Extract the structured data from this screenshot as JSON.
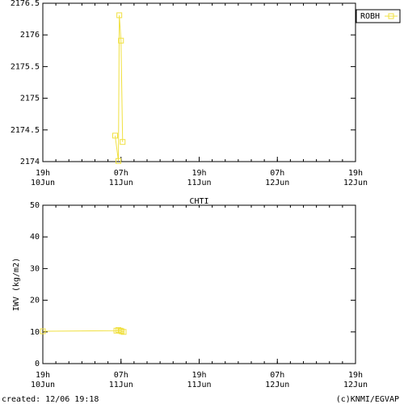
{
  "chart_data": [
    {
      "type": "line",
      "legend": "upper right",
      "xlim": [
        0,
        48
      ],
      "ylim": [
        2174,
        2176.5
      ],
      "yticks": [
        2174,
        2174.5,
        2175,
        2175.5,
        2176,
        2176.5
      ],
      "xticks": [
        {
          "value": 0,
          "label": "19h",
          "date": "10Jun"
        },
        {
          "value": 12,
          "label": "07h",
          "date": "11Jun"
        },
        {
          "value": 24,
          "label": "19h",
          "date": "11Jun"
        },
        {
          "value": 36,
          "label": "07h",
          "date": "12Jun"
        },
        {
          "value": 48,
          "label": "19h",
          "date": "12Jun"
        }
      ],
      "series": [
        {
          "name": "ROBH",
          "color": "#f0e040",
          "x": [
            11.1,
            11.6,
            11.74,
            12.0,
            12.25
          ],
          "values": [
            2174.41,
            2174.01,
            2176.31,
            2175.91,
            2174.31
          ]
        }
      ]
    },
    {
      "type": "line",
      "title": "CHTI",
      "ylabel": "IWV (kg/m2)",
      "xlim": [
        0,
        48
      ],
      "ylim": [
        0,
        50
      ],
      "yticks": [
        0,
        10,
        20,
        30,
        40,
        50
      ],
      "xticks": [
        {
          "value": 0,
          "label": "19h",
          "date": "10Jun"
        },
        {
          "value": 12,
          "label": "07h",
          "date": "11Jun"
        },
        {
          "value": 24,
          "label": "19h",
          "date": "11Jun"
        },
        {
          "value": 36,
          "label": "07h",
          "date": "12Jun"
        },
        {
          "value": 48,
          "label": "19h",
          "date": "12Jun"
        }
      ],
      "series": [
        {
          "color": "#f0e040",
          "x": [
            0,
            11.3,
            11.6,
            11.9,
            12.1,
            12.4
          ],
          "values": [
            10.2,
            10.4,
            10.6,
            10.4,
            10.2,
            10.0
          ]
        }
      ]
    }
  ],
  "footer": {
    "created": "created: 12/06 19:18",
    "credit": "(c)KNMI/EGVAP"
  }
}
